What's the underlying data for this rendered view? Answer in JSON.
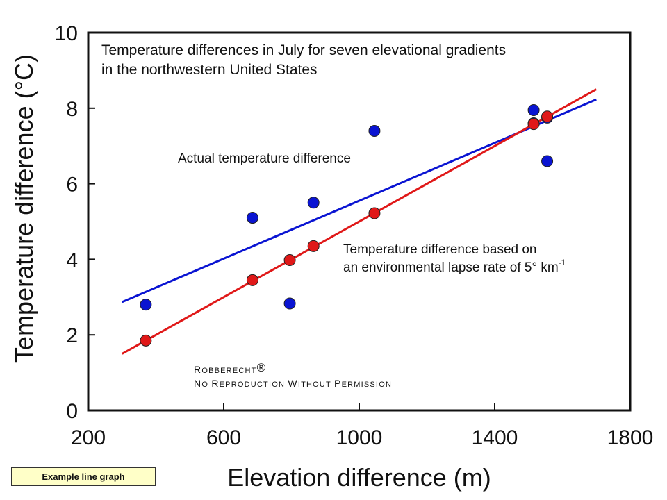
{
  "chart_data": {
    "type": "scatter",
    "title_lines": [
      "Temperature differences in July for seven elevational gradients",
      "in the northwestern United States"
    ],
    "xlabel": "Elevation difference (m)",
    "ylabel": "Temperature difference (°C)",
    "xlim": [
      200,
      1800
    ],
    "ylim": [
      0,
      10
    ],
    "x_ticks": [
      200,
      600,
      1000,
      1400,
      1800
    ],
    "y_ticks": [
      0,
      2,
      4,
      6,
      8,
      10
    ],
    "grid": false,
    "series": [
      {
        "name": "Actual temperature difference",
        "color": "#0a14d2",
        "points": [
          {
            "x": 370,
            "y": 2.8
          },
          {
            "x": 685,
            "y": 5.1
          },
          {
            "x": 795,
            "y": 2.83
          },
          {
            "x": 865,
            "y": 5.5
          },
          {
            "x": 1045,
            "y": 7.4
          },
          {
            "x": 1515,
            "y": 7.95
          },
          {
            "x": 1515,
            "y": 7.6
          },
          {
            "x": 1555,
            "y": 7.75
          },
          {
            "x": 1555,
            "y": 6.6
          }
        ],
        "trend": {
          "x1": 300,
          "y1": 2.87,
          "x2": 1700,
          "y2": 8.23
        }
      },
      {
        "name_lines": [
          "Temperature difference based on",
          "an environmental lapse rate of 5° km"
        ],
        "name_superscript": "-1",
        "color": "#e01818",
        "points": [
          {
            "x": 370,
            "y": 1.85
          },
          {
            "x": 685,
            "y": 3.45
          },
          {
            "x": 795,
            "y": 3.98
          },
          {
            "x": 865,
            "y": 4.35
          },
          {
            "x": 1045,
            "y": 5.22
          },
          {
            "x": 1515,
            "y": 7.58
          },
          {
            "x": 1555,
            "y": 7.78
          }
        ],
        "trend": {
          "x1": 300,
          "y1": 1.5,
          "x2": 1700,
          "y2": 8.5
        }
      }
    ],
    "annotations": {
      "copyright_first": "R",
      "copyright_rest": "OBBERECHT",
      "copyright_mark": "®",
      "notice_parts": [
        {
          "cap": "N",
          "rest": "O "
        },
        {
          "cap": "R",
          "rest": "EPRODUCTION "
        },
        {
          "cap": "W",
          "rest": "ITHOUT "
        },
        {
          "cap": "P",
          "rest": "ERMISSION"
        }
      ]
    }
  },
  "caption": "Example line graph"
}
